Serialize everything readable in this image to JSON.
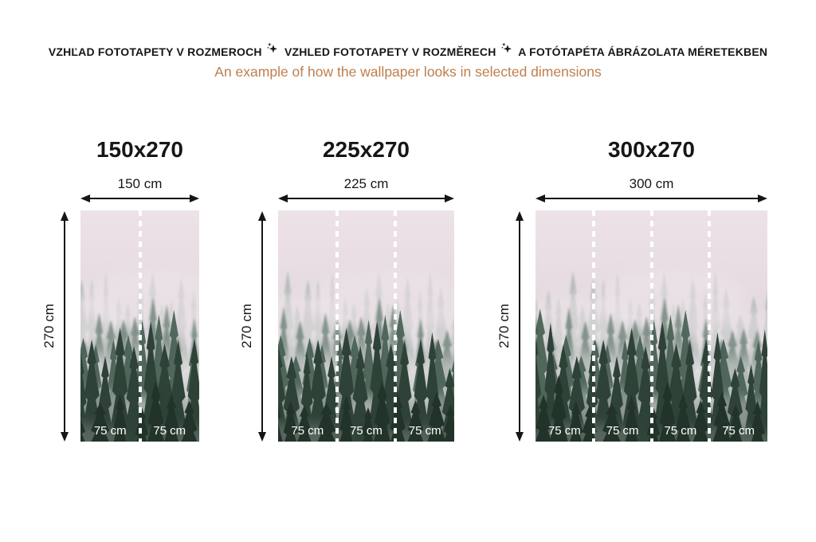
{
  "header": {
    "titles": [
      "VZHĽAD FOTOTAPETY V ROZMEROCH",
      "VZHLED FOTOTAPETY V ROZMĚRECH",
      "A FOTÓTAPÉTA ÁBRÁZOLATA MÉRETEKBEN"
    ],
    "separator_icon": "sparkles-icon",
    "subtitle": "An example of how the wallpaper looks in selected dimensions"
  },
  "colors": {
    "heading_text": "#161616",
    "subtitle_text": "#bf7e4d",
    "measure_lines": "#151515",
    "section_label_text": "#ffffff",
    "wallpaper_sky": "#ece2e8",
    "wallpaper_fog": "#ece5e9",
    "wallpaper_trees_far": "#96a6a0",
    "wallpaper_trees_mid": "#6d8278",
    "wallpaper_trees_near": "#475e52",
    "wallpaper_trees_front": "#2e4238"
  },
  "wallpaper": {
    "subject": "misty pine forest photo, fog between dark conifer trees"
  },
  "panels": [
    {
      "title": "150x270",
      "width_label": "150 cm",
      "height_label": "270 cm",
      "sections": [
        "75 cm",
        "75 cm"
      ]
    },
    {
      "title": "225x270",
      "width_label": "225 cm",
      "height_label": "270 cm",
      "sections": [
        "75 cm",
        "75 cm",
        "75 cm"
      ]
    },
    {
      "title": "300x270",
      "width_label": "300 cm",
      "height_label": "270 cm",
      "sections": [
        "75 cm",
        "75 cm",
        "75 cm",
        "75 cm"
      ]
    }
  ]
}
